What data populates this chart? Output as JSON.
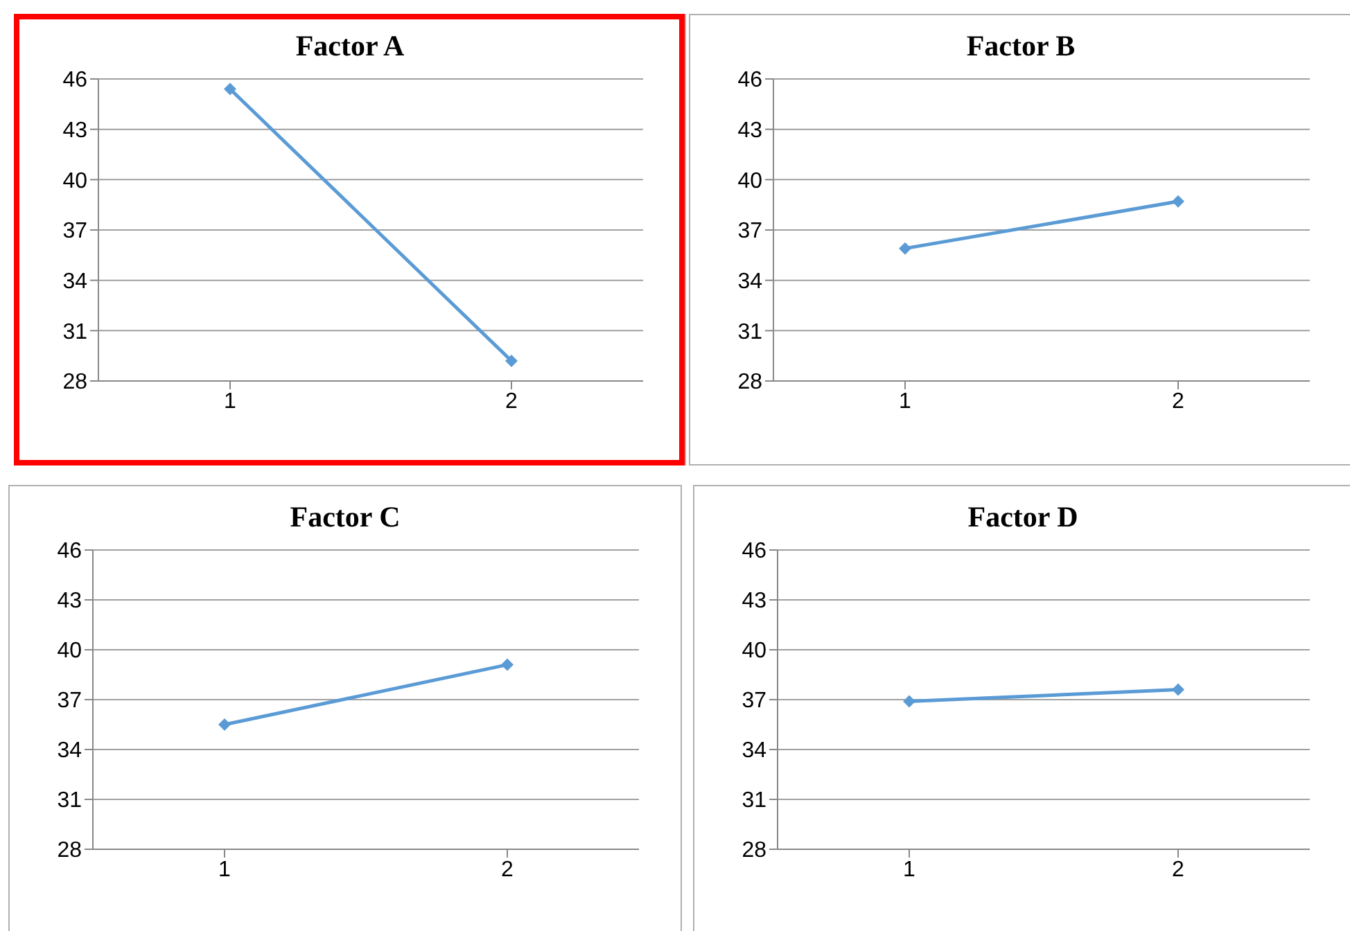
{
  "chart_data": [
    {
      "type": "line",
      "title": "Factor A",
      "categories": [
        "1",
        "2"
      ],
      "series": [
        {
          "color": "#5b9bd5",
          "values": [
            45.4,
            29.2
          ]
        }
      ],
      "ylim": [
        28,
        46
      ],
      "yticks": [
        28,
        31,
        34,
        37,
        40,
        43,
        46
      ],
      "grid": "y",
      "marker": "diamond",
      "legend": false
    },
    {
      "type": "line",
      "title": "Factor B",
      "categories": [
        "1",
        "2"
      ],
      "series": [
        {
          "color": "#5b9bd5",
          "values": [
            35.9,
            38.7
          ]
        }
      ],
      "ylim": [
        28,
        46
      ],
      "yticks": [
        28,
        31,
        34,
        37,
        40,
        43,
        46
      ],
      "grid": "y",
      "marker": "diamond",
      "legend": false
    },
    {
      "type": "line",
      "title": "Factor C",
      "categories": [
        "1",
        "2"
      ],
      "series": [
        {
          "color": "#5b9bd5",
          "values": [
            35.5,
            39.1
          ]
        }
      ],
      "ylim": [
        28,
        46
      ],
      "yticks": [
        28,
        31,
        34,
        37,
        40,
        43,
        46
      ],
      "grid": "y",
      "marker": "diamond",
      "legend": false
    },
    {
      "type": "line",
      "title": "Factor D",
      "categories": [
        "1",
        "2"
      ],
      "series": [
        {
          "color": "#5b9bd5",
          "values": [
            36.9,
            37.6
          ]
        }
      ],
      "ylim": [
        28,
        46
      ],
      "yticks": [
        28,
        31,
        34,
        37,
        40,
        43,
        46
      ],
      "grid": "y",
      "marker": "diamond",
      "legend": false
    }
  ]
}
